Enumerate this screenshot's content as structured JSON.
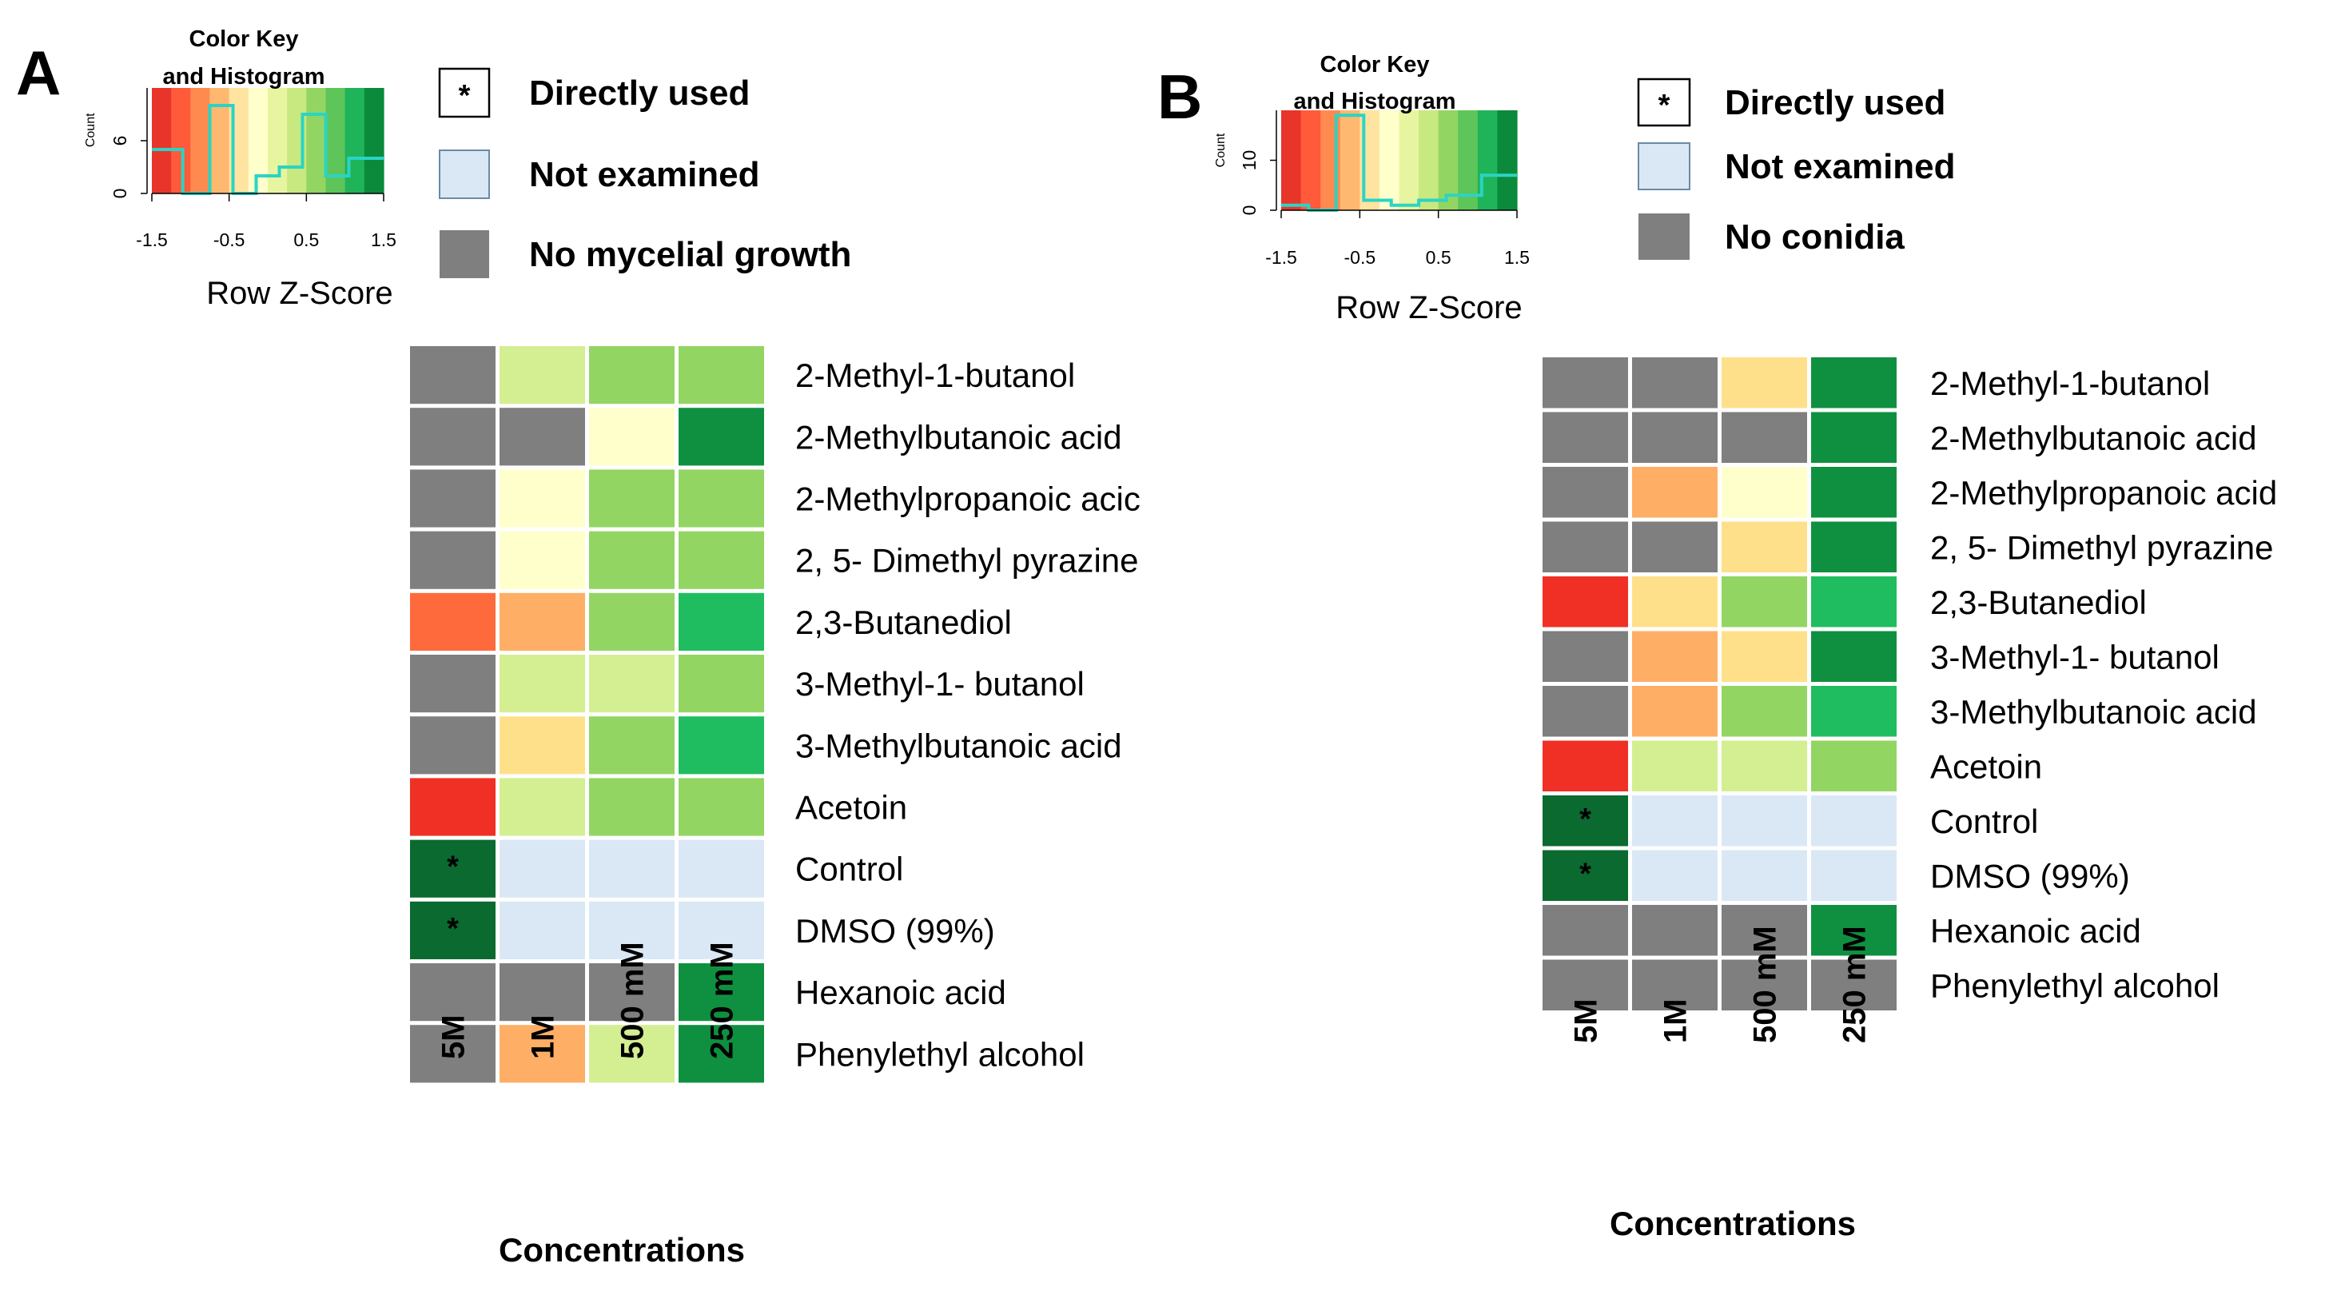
{
  "chart_data": [
    {
      "type": "heatmap",
      "panel": "A",
      "color_key": {
        "title_line1": "Color Key",
        "title_line2": "and Histogram",
        "xlabel": "Row Z-Score",
        "ylabel": "Count",
        "x_ticks": [
          "-1.5",
          "-0.5",
          "0.5",
          "1.5"
        ],
        "y_ticks": [
          "0",
          "6"
        ],
        "x_range": [
          -1.5,
          1.5
        ],
        "y_range": [
          0,
          12
        ],
        "histogram_x": [
          -1.5,
          -1.1,
          -1.1,
          -0.75,
          -0.75,
          -0.45,
          -0.45,
          -0.15,
          -0.15,
          0.15,
          0.15,
          0.45,
          0.45,
          0.75,
          0.75,
          1.05,
          1.05,
          1.5
        ],
        "histogram_y": [
          5,
          5,
          0,
          0,
          10,
          10,
          0,
          0,
          2,
          2,
          3,
          3,
          9,
          9,
          2,
          2,
          4,
          4
        ],
        "colors": [
          "#e8352a",
          "#ff5a3a",
          "#ff8a50",
          "#ffb870",
          "#ffe3a0",
          "#ffffcc",
          "#e8f5a0",
          "#c8e880",
          "#93d563",
          "#5ec55a",
          "#1fb35a",
          "#0a8a3a"
        ]
      },
      "legend": {
        "directly_used": "Directly used",
        "directly_used_symbol": "*",
        "not_examined": "Not examined",
        "no_growth": "No mycelial growth"
      },
      "rows": [
        "2-Methyl-1-butanol",
        "2-Methylbutanoic acid",
        "2-Methylpropanoic acic",
        "2, 5- Dimethyl pyrazine",
        "2,3-Butanediol",
        "3-Methyl-1- butanol",
        "3-Methylbutanoic acid",
        "Acetoin",
        "Control",
        "DMSO (99%)",
        "Hexanoic acid",
        "Phenylethyl alcohol"
      ],
      "columns": [
        "5M",
        "1M",
        "500 mM",
        "250 mM"
      ],
      "xlabel": "Concentrations",
      "cells": [
        [
          "#7f7f7f",
          "#d4ee92",
          "#93d563",
          "#93d563"
        ],
        [
          "#7f7f7f",
          "#7f7f7f",
          "#ffffcc",
          "#0f9040"
        ],
        [
          "#7f7f7f",
          "#ffffcc",
          "#93d563",
          "#93d563"
        ],
        [
          "#7f7f7f",
          "#ffffcc",
          "#93d563",
          "#93d563"
        ],
        [
          "#ff6a3c",
          "#ffae66",
          "#93d563",
          "#1fbd5f"
        ],
        [
          "#7f7f7f",
          "#d4ee92",
          "#d4ee92",
          "#93d563"
        ],
        [
          "#7f7f7f",
          "#ffe08a",
          "#93d563",
          "#1fbd5f"
        ],
        [
          "#f03025",
          "#d4ee92",
          "#93d563",
          "#93d563"
        ],
        [
          "#0a6a30",
          "#dae8f5",
          "#dae8f5",
          "#dae8f5"
        ],
        [
          "#0a6a30",
          "#dae8f5",
          "#dae8f5",
          "#dae8f5"
        ],
        [
          "#7f7f7f",
          "#7f7f7f",
          "#7f7f7f",
          "#0f9040"
        ],
        [
          "#7f7f7f",
          "#ffae66",
          "#d4ee92",
          "#0f9040"
        ]
      ],
      "stars": [
        [
          8,
          0
        ],
        [
          9,
          0
        ]
      ]
    },
    {
      "type": "heatmap",
      "panel": "B",
      "color_key": {
        "title_line1": "Color Key",
        "title_line2": "and Histogram",
        "xlabel": "Row Z-Score",
        "ylabel": "Count",
        "x_ticks": [
          "-1.5",
          "-0.5",
          "0.5",
          "1.5"
        ],
        "y_ticks": [
          "0",
          "10"
        ],
        "x_range": [
          -1.5,
          1.5
        ],
        "y_range": [
          0,
          20
        ],
        "histogram_x": [
          -1.5,
          -1.15,
          -1.15,
          -0.8,
          -0.8,
          -0.45,
          -0.45,
          -0.1,
          -0.1,
          0.25,
          0.25,
          0.6,
          0.6,
          1.05,
          1.05,
          1.5
        ],
        "histogram_y": [
          1,
          1,
          0,
          0,
          19,
          19,
          2,
          2,
          1,
          1,
          2,
          2,
          3,
          3,
          7,
          7
        ],
        "colors": [
          "#e8352a",
          "#ff5a3a",
          "#ff8a50",
          "#ffb870",
          "#ffe3a0",
          "#ffffcc",
          "#e8f5a0",
          "#c8e880",
          "#93d563",
          "#5ec55a",
          "#1fb35a",
          "#0a8a3a"
        ]
      },
      "legend": {
        "directly_used": "Directly used",
        "directly_used_symbol": "*",
        "not_examined": "Not examined",
        "no_growth": "No conidia"
      },
      "rows": [
        "2-Methyl-1-butanol",
        "2-Methylbutanoic acid",
        "2-Methylpropanoic acid",
        "2, 5- Dimethyl pyrazine",
        "2,3-Butanediol",
        "3-Methyl-1- butanol",
        "3-Methylbutanoic acid",
        "Acetoin",
        "Control",
        "DMSO (99%)",
        "Hexanoic acid",
        "Phenylethyl alcohol"
      ],
      "columns": [
        "5M",
        "1M",
        "500 mM",
        "250 mM"
      ],
      "xlabel": "Concentrations",
      "cells": [
        [
          "#7f7f7f",
          "#7f7f7f",
          "#ffe08a",
          "#0f9040"
        ],
        [
          "#7f7f7f",
          "#7f7f7f",
          "#7f7f7f",
          "#0f9040"
        ],
        [
          "#7f7f7f",
          "#ffae66",
          "#ffffcc",
          "#0f9040"
        ],
        [
          "#7f7f7f",
          "#7f7f7f",
          "#ffe08a",
          "#0f9040"
        ],
        [
          "#f03025",
          "#ffe08a",
          "#93d563",
          "#1fbd5f"
        ],
        [
          "#7f7f7f",
          "#ffae66",
          "#ffe08a",
          "#0f9040"
        ],
        [
          "#7f7f7f",
          "#ffae66",
          "#93d563",
          "#1fbd5f"
        ],
        [
          "#f03025",
          "#d4ee92",
          "#d4ee92",
          "#93d563"
        ],
        [
          "#0a6a30",
          "#dae8f5",
          "#dae8f5",
          "#dae8f5"
        ],
        [
          "#0a6a30",
          "#dae8f5",
          "#dae8f5",
          "#dae8f5"
        ],
        [
          "#7f7f7f",
          "#7f7f7f",
          "#7f7f7f",
          "#0f9040"
        ],
        [
          "#7f7f7f",
          "#7f7f7f",
          "#7f7f7f",
          "#7f7f7f"
        ]
      ],
      "stars": [
        [
          8,
          0
        ],
        [
          9,
          0
        ]
      ]
    }
  ],
  "colors": {
    "no_growth_gray": "#7f7f7f",
    "not_examined_blue": "#dae8f5",
    "histogram_line": "#2ad4c4"
  }
}
